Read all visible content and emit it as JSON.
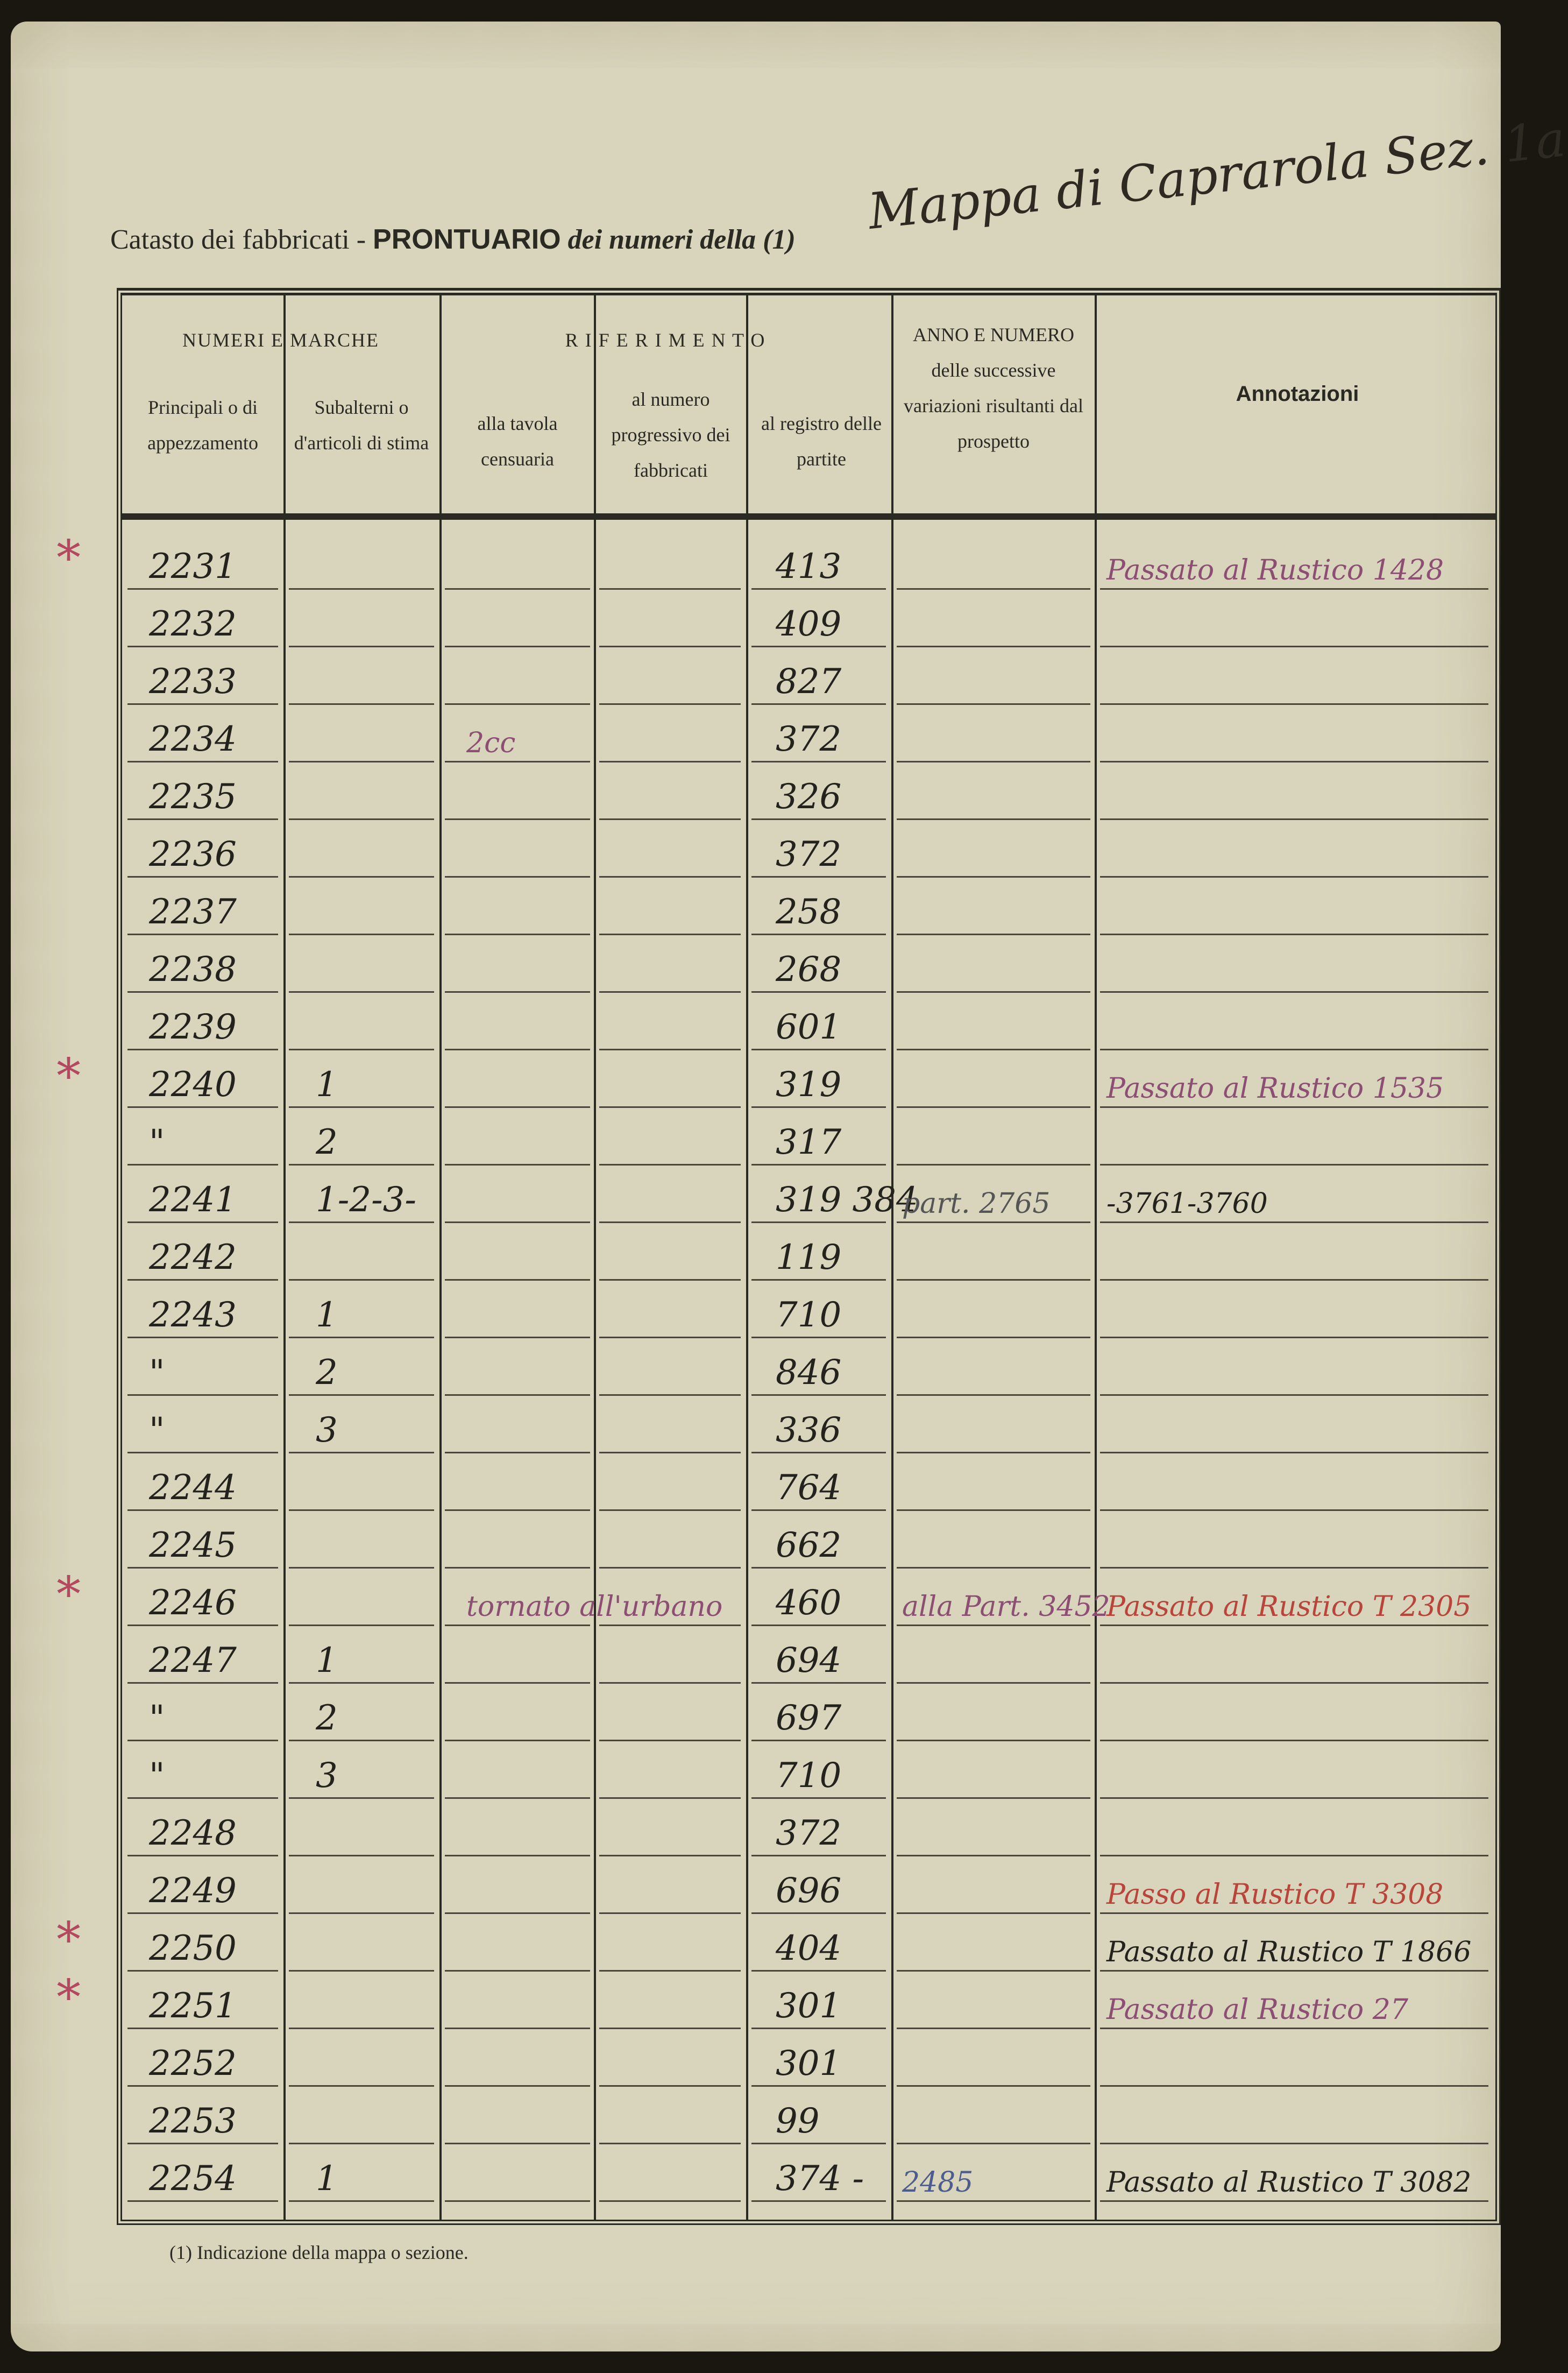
{
  "header": {
    "printed_title_1": "Catasto dei fabbricati - ",
    "printed_title_2": "PRONTUARIO",
    "printed_title_3": " dei numeri della (1) ",
    "handwritten_map": "Mappa di Caprarola Sez. 1a"
  },
  "columns": {
    "group_numeri": "NUMERI E MARCHE",
    "group_riferimento": "R I F E R I M E N T O",
    "principali": "Principali o di appezzamento",
    "subalterni": "Subalterni o d'articoli di stima",
    "tavola": "alla tavola censuaria",
    "progressivo": "al numero progressivo dei fabbricati",
    "registro": "al registro delle partite",
    "anno": "ANNO E NUMERO delle successive variazioni risultanti dal prospetto",
    "annotazioni": "Annotazioni"
  },
  "rows": [
    {
      "principale": "2231",
      "sub": "",
      "registro": "413",
      "variazioni": "",
      "annotazione": "Passato al Rustico 1428",
      "ann_color": "purple",
      "star": true
    },
    {
      "principale": "2232",
      "sub": "",
      "registro": "409",
      "variazioni": "",
      "annotazione": ""
    },
    {
      "principale": "2233",
      "sub": "",
      "registro": "827",
      "variazioni": "",
      "annotazione": ""
    },
    {
      "principale": "2234",
      "sub": "",
      "registro": "372",
      "variazioni": "",
      "annotazione": "",
      "tavola": "2cc"
    },
    {
      "principale": "2235",
      "sub": "",
      "registro": "326",
      "variazioni": "",
      "annotazione": ""
    },
    {
      "principale": "2236",
      "sub": "",
      "registro": "372",
      "variazioni": "",
      "annotazione": ""
    },
    {
      "principale": "2237",
      "sub": "",
      "registro": "258",
      "variazioni": "",
      "annotazione": ""
    },
    {
      "principale": "2238",
      "sub": "",
      "registro": "268",
      "variazioni": "",
      "annotazione": ""
    },
    {
      "principale": "2239",
      "sub": "",
      "registro": "601",
      "variazioni": "",
      "annotazione": ""
    },
    {
      "principale": "2240",
      "sub": "1",
      "registro": "319",
      "variazioni": "",
      "annotazione": "Passato al Rustico 1535",
      "ann_color": "purple",
      "star": true
    },
    {
      "principale": "\"",
      "sub": "2",
      "registro": "317",
      "variazioni": "",
      "annotazione": ""
    },
    {
      "principale": "2241",
      "sub": "1-2-3-",
      "registro": "319 384",
      "variazioni": "part. 2765",
      "annotazione": "-3761-3760"
    },
    {
      "principale": "2242",
      "sub": "",
      "registro": "119",
      "variazioni": "",
      "annotazione": ""
    },
    {
      "principale": "2243",
      "sub": "1",
      "registro": "710",
      "variazioni": "",
      "annotazione": ""
    },
    {
      "principale": "\"",
      "sub": "2",
      "registro": "846",
      "variazioni": "",
      "annotazione": ""
    },
    {
      "principale": "\"",
      "sub": "3",
      "registro": "336",
      "variazioni": "",
      "annotazione": ""
    },
    {
      "principale": "2244",
      "sub": "",
      "registro": "764",
      "variazioni": "",
      "annotazione": ""
    },
    {
      "principale": "2245",
      "sub": "",
      "registro": "662",
      "variazioni": "",
      "annotazione": ""
    },
    {
      "principale": "2246",
      "sub": "",
      "registro": "460",
      "variazioni": "alla Part. 3452",
      "annotazione": "Passato al Rustico T 2305",
      "ann_color": "red",
      "tavola": "tornato all'urbano",
      "star": true
    },
    {
      "principale": "2247",
      "sub": "1",
      "registro": "694",
      "variazioni": "",
      "annotazione": ""
    },
    {
      "principale": "\"",
      "sub": "2",
      "registro": "697",
      "variazioni": "",
      "annotazione": ""
    },
    {
      "principale": "\"",
      "sub": "3",
      "registro": "710",
      "variazioni": "",
      "annotazione": ""
    },
    {
      "principale": "2248",
      "sub": "",
      "registro": "372",
      "variazioni": "",
      "annotazione": ""
    },
    {
      "principale": "2249",
      "sub": "",
      "registro": "696",
      "variazioni": "",
      "annotazione": "Passo al Rustico T 3308",
      "ann_color": "red"
    },
    {
      "principale": "2250",
      "sub": "",
      "registro": "404",
      "variazioni": "",
      "annotazione": "Passato al Rustico T 1866",
      "star": true
    },
    {
      "principale": "2251",
      "sub": "",
      "registro": "301",
      "variazioni": "",
      "annotazione": "Passato al Rustico 27",
      "ann_color": "purple",
      "star": true
    },
    {
      "principale": "2252",
      "sub": "",
      "registro": "301",
      "variazioni": "",
      "annotazione": ""
    },
    {
      "principale": "2253",
      "sub": "",
      "registro": "99",
      "variazioni": "",
      "annotazione": ""
    },
    {
      "principale": "2254",
      "sub": "1",
      "registro": "374 -",
      "variazioni": "2485",
      "var_color": "blue",
      "annotazione": "Passato al Rustico T 3082"
    }
  ],
  "footnote": "(1) Indicazione della mappa o sezione.",
  "colors": {
    "paper": "#d8d5bc",
    "ink": "#24221c",
    "red_ink": "#b8443a",
    "purple_ink": "#8c4e72",
    "blue_ink": "#4c5c8c"
  }
}
